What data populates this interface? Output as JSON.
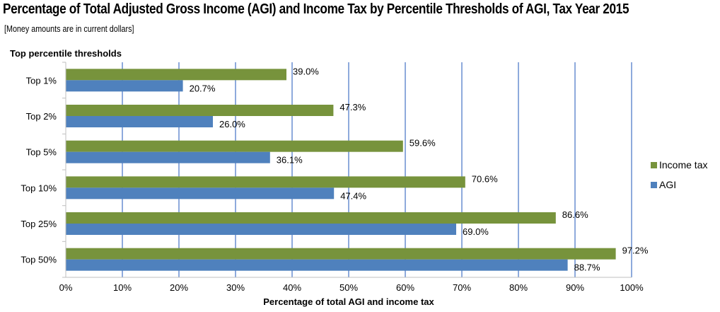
{
  "title": "Percentage of Total Adjusted Gross Income (AGI) and Income Tax by Percentile Thresholds of AGI, Tax Year 2015",
  "subtitle": "[Money amounts are in current dollars]",
  "chart_data": {
    "type": "bar",
    "orientation": "horizontal",
    "categories": [
      "Top 1%",
      "Top 2%",
      "Top 5%",
      "Top 10%",
      "Top 25%",
      "Top 50%"
    ],
    "series": [
      {
        "name": "Income tax",
        "values": [
          39.0,
          47.3,
          59.6,
          70.6,
          86.6,
          97.2
        ],
        "labels": [
          "39.0%",
          "47.3%",
          "59.6%",
          "70.6%",
          "86.6%",
          "97.2%"
        ],
        "color": "#77933c"
      },
      {
        "name": "AGI",
        "values": [
          20.7,
          26.0,
          36.1,
          47.4,
          69.0,
          88.7
        ],
        "labels": [
          "20.7%",
          "26.0%",
          "36.1%",
          "47.4%",
          "69.0%",
          "88.7%"
        ],
        "color": "#4f81bd"
      }
    ],
    "ylabel": "Top percentile thresholds",
    "xlabel": "Percentage of total AGI and income tax",
    "xlim": [
      0,
      100
    ],
    "xticks": [
      "0%",
      "10%",
      "20%",
      "30%",
      "40%",
      "50%",
      "60%",
      "70%",
      "80%",
      "90%",
      "100%"
    ],
    "grid": true,
    "grid_color": "#4472c4",
    "legend_position": "right"
  }
}
